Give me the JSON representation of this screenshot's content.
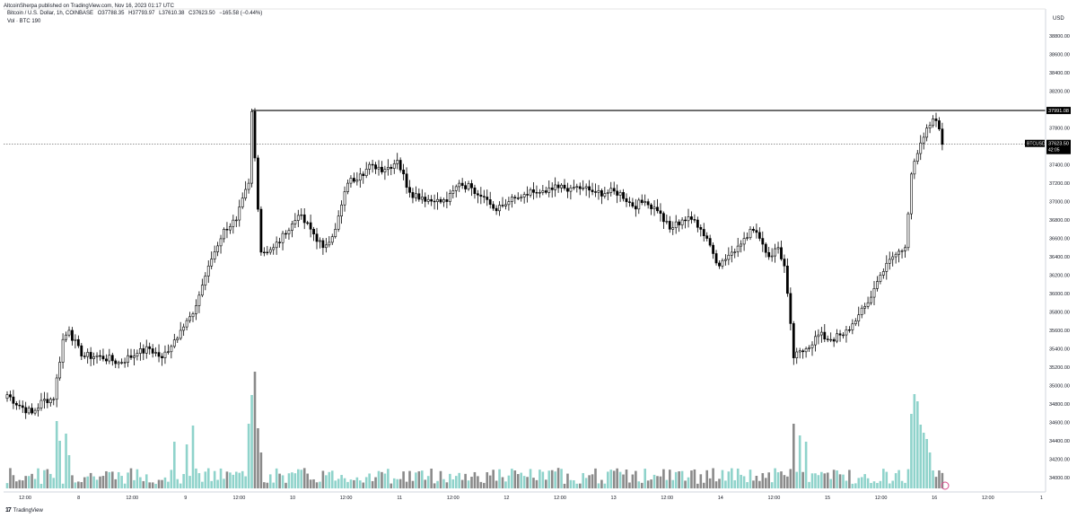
{
  "header": {
    "published": "AltcoinSherpa published on TradingView.com, Nov 16, 2023 01:17 UTC",
    "symbol_line": {
      "name": "Bitcoin / U.S. Dollar, 1h, COINBASE",
      "open": "O37788.35",
      "high": "H37793.97",
      "low": "L37610.38",
      "close": "C37623.50",
      "change": "−165.58 (−0.44%)"
    },
    "volume_line": "Vol · BTC  190"
  },
  "price_axis": {
    "currency": "USD",
    "ticks": [
      "34000.00",
      "34200.00",
      "34400.00",
      "34600.00",
      "34800.00",
      "35000.00",
      "35200.00",
      "35400.00",
      "35600.00",
      "35800.00",
      "36000.00",
      "36200.00",
      "36400.00",
      "36600.00",
      "36800.00",
      "37000.00",
      "37200.00",
      "37400.00",
      "37600.00",
      "37800.00",
      "38000.00",
      "38200.00",
      "38400.00",
      "38600.00",
      "38800.00"
    ],
    "range": [
      33920,
      38900
    ]
  },
  "time_axis": {
    "ticks": [
      "12:00",
      "8",
      "12:00",
      "9",
      "12:00",
      "10",
      "12:00",
      "11",
      "12:00",
      "12",
      "12:00",
      "13",
      "12:00",
      "14",
      "12:00",
      "15",
      "12:00",
      "16",
      "12:00",
      "1"
    ]
  },
  "badges": {
    "resistance_price": "37991.08",
    "symbol": "BTCUSD",
    "last_price": "37623.50",
    "countdown": "42:05"
  },
  "colors": {
    "up_volume": "#8fd3cb",
    "down_volume": "#8a8a8a",
    "candle": "#000000",
    "background": "#ffffff"
  },
  "footer": {
    "brand": "TradingView",
    "logo_text": "17"
  },
  "chart_data": {
    "type": "candlestick",
    "interval": "1h",
    "symbol": "BTCUSD",
    "price_range": [
      33920,
      38900
    ],
    "resistance_level": 37991.08,
    "last_price": 37623.5,
    "anchors": [
      {
        "i": 0,
        "p": 34900
      },
      {
        "i": 4,
        "p": 34780
      },
      {
        "i": 8,
        "p": 34700
      },
      {
        "i": 12,
        "p": 34850
      },
      {
        "i": 15,
        "p": 34850
      },
      {
        "i": 18,
        "p": 35500
      },
      {
        "i": 20,
        "p": 35600
      },
      {
        "i": 24,
        "p": 35320
      },
      {
        "i": 30,
        "p": 35320
      },
      {
        "i": 36,
        "p": 35250
      },
      {
        "i": 42,
        "p": 35350
      },
      {
        "i": 46,
        "p": 35400
      },
      {
        "i": 50,
        "p": 35300
      },
      {
        "i": 56,
        "p": 35600
      },
      {
        "i": 60,
        "p": 35780
      },
      {
        "i": 65,
        "p": 36300
      },
      {
        "i": 70,
        "p": 36700
      },
      {
        "i": 74,
        "p": 36800
      },
      {
        "i": 78,
        "p": 37200
      },
      {
        "i": 79,
        "p": 37980
      },
      {
        "i": 82,
        "p": 36450
      },
      {
        "i": 86,
        "p": 36500
      },
      {
        "i": 90,
        "p": 36650
      },
      {
        "i": 94,
        "p": 36850
      },
      {
        "i": 98,
        "p": 36700
      },
      {
        "i": 102,
        "p": 36500
      },
      {
        "i": 106,
        "p": 36700
      },
      {
        "i": 110,
        "p": 37200
      },
      {
        "i": 114,
        "p": 37300
      },
      {
        "i": 118,
        "p": 37400
      },
      {
        "i": 122,
        "p": 37350
      },
      {
        "i": 126,
        "p": 37450
      },
      {
        "i": 130,
        "p": 37100
      },
      {
        "i": 134,
        "p": 37050
      },
      {
        "i": 138,
        "p": 37000
      },
      {
        "i": 142,
        "p": 37000
      },
      {
        "i": 146,
        "p": 37200
      },
      {
        "i": 150,
        "p": 37150
      },
      {
        "i": 154,
        "p": 37050
      },
      {
        "i": 158,
        "p": 36900
      },
      {
        "i": 162,
        "p": 37000
      },
      {
        "i": 166,
        "p": 37050
      },
      {
        "i": 170,
        "p": 37100
      },
      {
        "i": 174,
        "p": 37100
      },
      {
        "i": 178,
        "p": 37150
      },
      {
        "i": 182,
        "p": 37150
      },
      {
        "i": 186,
        "p": 37150
      },
      {
        "i": 190,
        "p": 37100
      },
      {
        "i": 194,
        "p": 37100
      },
      {
        "i": 198,
        "p": 37100
      },
      {
        "i": 202,
        "p": 36950
      },
      {
        "i": 206,
        "p": 37000
      },
      {
        "i": 210,
        "p": 36900
      },
      {
        "i": 214,
        "p": 36700
      },
      {
        "i": 218,
        "p": 36800
      },
      {
        "i": 222,
        "p": 36800
      },
      {
        "i": 226,
        "p": 36600
      },
      {
        "i": 230,
        "p": 36300
      },
      {
        "i": 234,
        "p": 36450
      },
      {
        "i": 238,
        "p": 36600
      },
      {
        "i": 240,
        "p": 36700
      },
      {
        "i": 243,
        "p": 36600
      },
      {
        "i": 246,
        "p": 36400
      },
      {
        "i": 249,
        "p": 36500
      },
      {
        "i": 251,
        "p": 36300
      },
      {
        "i": 254,
        "p": 35300
      },
      {
        "i": 258,
        "p": 35400
      },
      {
        "i": 262,
        "p": 35550
      },
      {
        "i": 266,
        "p": 35500
      },
      {
        "i": 270,
        "p": 35550
      },
      {
        "i": 274,
        "p": 35700
      },
      {
        "i": 278,
        "p": 35900
      },
      {
        "i": 282,
        "p": 36200
      },
      {
        "i": 286,
        "p": 36400
      },
      {
        "i": 290,
        "p": 36500
      },
      {
        "i": 292,
        "p": 37300
      },
      {
        "i": 296,
        "p": 37700
      },
      {
        "i": 299,
        "p": 37900
      },
      {
        "i": 301,
        "p": 37790
      },
      {
        "i": 302,
        "p": 37623
      }
    ],
    "volume_spikes": [
      {
        "i": 16,
        "v": 75
      },
      {
        "i": 17,
        "v": 53
      },
      {
        "i": 19,
        "v": 61
      },
      {
        "i": 20,
        "v": 37
      },
      {
        "i": 54,
        "v": 52
      },
      {
        "i": 58,
        "v": 49
      },
      {
        "i": 60,
        "v": 70
      },
      {
        "i": 78,
        "v": 72
      },
      {
        "i": 79,
        "v": 104
      },
      {
        "i": 80,
        "v": 130
      },
      {
        "i": 81,
        "v": 67
      },
      {
        "i": 82,
        "v": 40
      },
      {
        "i": 254,
        "v": 72
      },
      {
        "i": 256,
        "v": 59
      },
      {
        "i": 258,
        "v": 52
      },
      {
        "i": 292,
        "v": 83
      },
      {
        "i": 293,
        "v": 105
      },
      {
        "i": 294,
        "v": 97
      },
      {
        "i": 295,
        "v": 71
      },
      {
        "i": 296,
        "v": 62
      },
      {
        "i": 297,
        "v": 55
      },
      {
        "i": 298,
        "v": 40
      },
      {
        "i": 299,
        "v": 20
      }
    ]
  }
}
